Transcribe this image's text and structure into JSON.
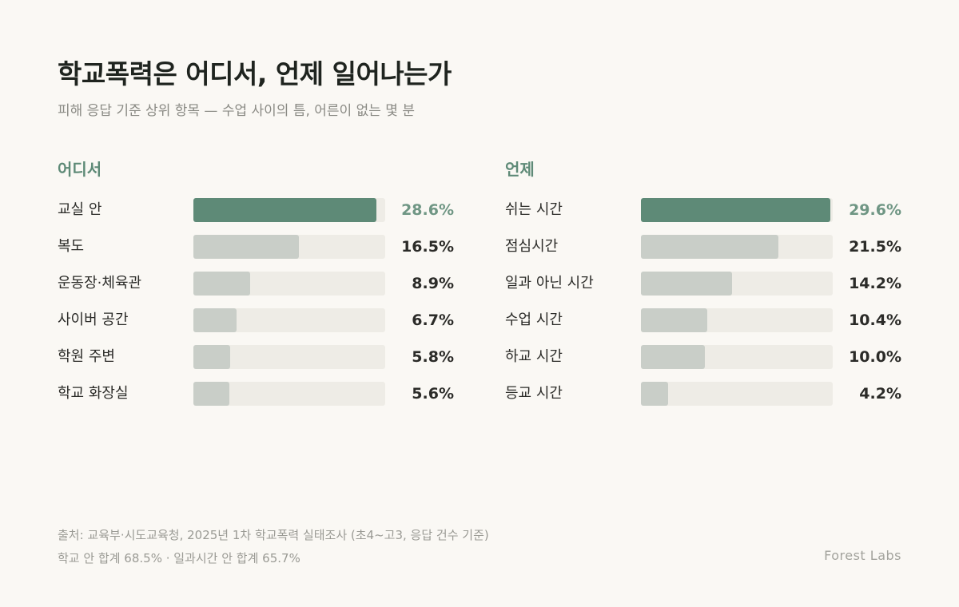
{
  "title": "학교폭력은 어디서, 언제 일어나는가",
  "subtitle": "피해 응답 기준 상위 항목 — 수업 사이의 틈, 어른이 없는 몇 분",
  "colors": {
    "accent": "#5e8a77",
    "bar_default": "#c9cec8",
    "track": "#eeece6",
    "background": "#faf8f4"
  },
  "chart_data": [
    {
      "type": "bar",
      "orientation": "horizontal",
      "title": "어디서",
      "unit": "%",
      "xlim": [
        0,
        30
      ],
      "categories": [
        "교실 안",
        "복도",
        "운동장·체육관",
        "사이버 공간",
        "학원 주변",
        "학교 화장실"
      ],
      "values": [
        28.6,
        16.5,
        8.9,
        6.7,
        5.8,
        5.6
      ],
      "value_labels": [
        "28.6%",
        "16.5%",
        "8.9%",
        "6.7%",
        "5.8%",
        "5.6%"
      ]
    },
    {
      "type": "bar",
      "orientation": "horizontal",
      "title": "언제",
      "unit": "%",
      "xlim": [
        0,
        30
      ],
      "categories": [
        "쉬는 시간",
        "점심시간",
        "일과 아닌 시간",
        "수업 시간",
        "하교 시간",
        "등교 시간"
      ],
      "values": [
        29.6,
        21.5,
        14.2,
        10.4,
        10.0,
        4.2
      ],
      "value_labels": [
        "29.6%",
        "21.5%",
        "14.2%",
        "10.4%",
        "10.0%",
        "4.2%"
      ]
    }
  ],
  "footer": {
    "source": "출처: 교육부·시도교육청, 2025년 1차 학교폭력 실태조사 (초4~고3, 응답 건수 기준)",
    "note": "학교 안 합계 68.5% · 일과시간 안 합계 65.7%",
    "brand": "Forest Labs"
  }
}
